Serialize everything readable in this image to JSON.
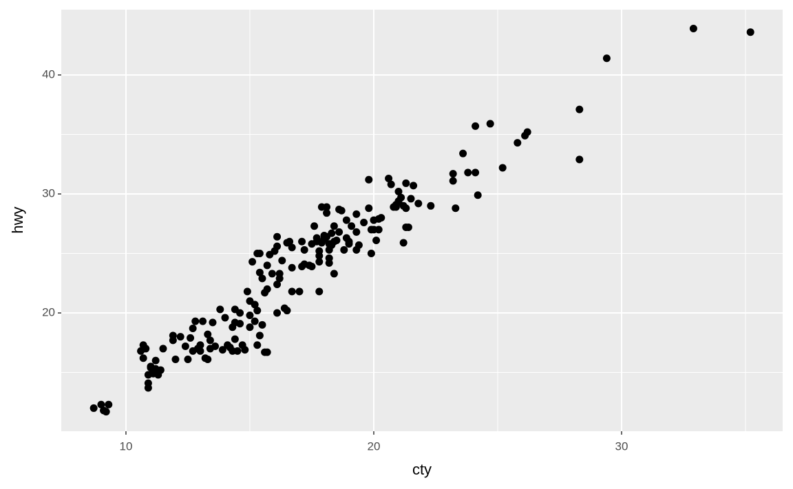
{
  "chart_data": {
    "type": "scatter",
    "xlabel": "cty",
    "ylabel": "hwy",
    "color": "#000000",
    "grid": true,
    "panel_color": "#ebebeb",
    "xlim": [
      7.39,
      36.5
    ],
    "ylim": [
      10.06,
      45.49
    ],
    "xticks": [
      10,
      20,
      30
    ],
    "yticks": [
      20,
      30,
      40
    ],
    "x_minor_ticks": [
      15,
      25,
      35
    ],
    "y_minor_ticks": [
      15,
      25,
      35
    ],
    "x": [
      8.7,
      9.0,
      9.3,
      9.1,
      9.2,
      10.6,
      10.7,
      10.7,
      10.8,
      10.9,
      10.9,
      10.9,
      11.0,
      11.1,
      11.2,
      11.2,
      11.3,
      11.4,
      11.5,
      11.1,
      11.0,
      11.9,
      11.9,
      12.0,
      12.2,
      12.4,
      12.5,
      12.6,
      12.7,
      12.8,
      12.7,
      12.9,
      13.0,
      13.0,
      13.1,
      13.2,
      13.3,
      13.3,
      13.4,
      13.5,
      13.4,
      13.6,
      13.8,
      13.9,
      14.0,
      14.1,
      14.2,
      14.3,
      14.3,
      14.4,
      14.4,
      14.4,
      14.5,
      14.6,
      14.6,
      14.7,
      14.8,
      14.9,
      15.0,
      15.0,
      15.0,
      15.1,
      15.2,
      15.3,
      15.2,
      15.3,
      15.4,
      15.5,
      15.4,
      15.3,
      15.4,
      15.5,
      15.6,
      15.6,
      15.7,
      15.7,
      15.7,
      15.8,
      15.9,
      16.0,
      16.1,
      16.1,
      16.1,
      16.1,
      16.2,
      16.2,
      16.3,
      16.4,
      16.5,
      16.5,
      16.6,
      16.7,
      16.7,
      16.7,
      17.0,
      17.1,
      17.1,
      17.2,
      17.2,
      17.4,
      17.5,
      17.5,
      17.6,
      17.7,
      17.8,
      17.8,
      17.8,
      17.9,
      18.0,
      18.1,
      18.2,
      18.3,
      18.5,
      17.9,
      18.1,
      18.1,
      18.3,
      18.2,
      18.2,
      18.4,
      18.2,
      18.0,
      17.7,
      17.8,
      18.4,
      19.0,
      19.3,
      19.3,
      19.4,
      19.6,
      19.3,
      18.8,
      18.9,
      18.9,
      19.1,
      19.0,
      18.6,
      18.4,
      18.7,
      18.6,
      19.8,
      19.8,
      19.9,
      20.0,
      20.1,
      20.2,
      20.2,
      20.0,
      20.3,
      19.9,
      20.6,
      20.7,
      21.0,
      21.3,
      21.6,
      21.2,
      21.3,
      21.4,
      21.3,
      21.5,
      21.8,
      22.3,
      20.9,
      21.0,
      21.1,
      20.9,
      21.2,
      20.8,
      21.0,
      23.2,
      23.2,
      23.3,
      23.6,
      23.8,
      24.1,
      24.1,
      24.2,
      24.7,
      25.2,
      25.8,
      26.1,
      26.2,
      28.3,
      28.3,
      29.4,
      32.9,
      35.2
    ],
    "values": [
      12.0,
      12.3,
      12.3,
      11.8,
      11.7,
      16.8,
      16.2,
      17.3,
      17.0,
      14.8,
      14.1,
      13.7,
      15.4,
      15.0,
      16.0,
      15.3,
      14.8,
      15.2,
      17.0,
      14.9,
      15.5,
      18.1,
      17.7,
      16.1,
      18.0,
      17.2,
      16.1,
      17.9,
      18.7,
      19.3,
      16.8,
      17.0,
      16.8,
      17.3,
      19.3,
      16.2,
      18.2,
      16.1,
      17.7,
      19.2,
      17.0,
      17.2,
      20.3,
      16.9,
      19.6,
      17.3,
      17.1,
      16.8,
      18.8,
      19.2,
      20.3,
      17.8,
      16.8,
      19.1,
      20.0,
      17.3,
      16.9,
      21.8,
      19.8,
      18.8,
      21.0,
      24.3,
      20.7,
      20.2,
      19.3,
      17.3,
      18.1,
      19.0,
      25.0,
      25.0,
      23.4,
      22.9,
      21.7,
      16.7,
      16.7,
      22.0,
      24.0,
      24.9,
      23.3,
      25.2,
      26.4,
      25.6,
      22.4,
      20.0,
      23.3,
      22.9,
      24.4,
      20.4,
      20.2,
      25.9,
      26.0,
      25.5,
      23.8,
      21.8,
      21.8,
      23.9,
      26.0,
      24.1,
      25.3,
      24.0,
      23.9,
      25.8,
      27.3,
      26.3,
      24.3,
      24.8,
      21.8,
      25.9,
      26.2,
      26.4,
      25.8,
      25.7,
      26.1,
      28.9,
      28.9,
      28.4,
      26.7,
      24.6,
      24.2,
      23.3,
      25.3,
      26.5,
      26.0,
      25.2,
      26.0,
      26.0,
      28.3,
      26.8,
      25.7,
      27.6,
      25.3,
      25.3,
      26.3,
      27.8,
      27.3,
      25.8,
      28.7,
      27.3,
      28.6,
      26.8,
      31.2,
      28.8,
      25.0,
      27.0,
      26.1,
      27.9,
      27.0,
      27.8,
      28.0,
      27.0,
      31.3,
      30.8,
      29.3,
      30.9,
      30.7,
      25.9,
      27.2,
      27.2,
      28.8,
      29.6,
      29.2,
      29.0,
      28.9,
      30.2,
      29.7,
      29.1,
      29.0,
      28.9,
      29.4,
      31.7,
      31.1,
      28.8,
      33.4,
      31.8,
      31.8,
      35.7,
      29.9,
      35.9,
      32.2,
      34.3,
      34.9,
      35.2,
      37.1,
      32.9,
      41.4,
      43.9,
      43.6
    ]
  }
}
